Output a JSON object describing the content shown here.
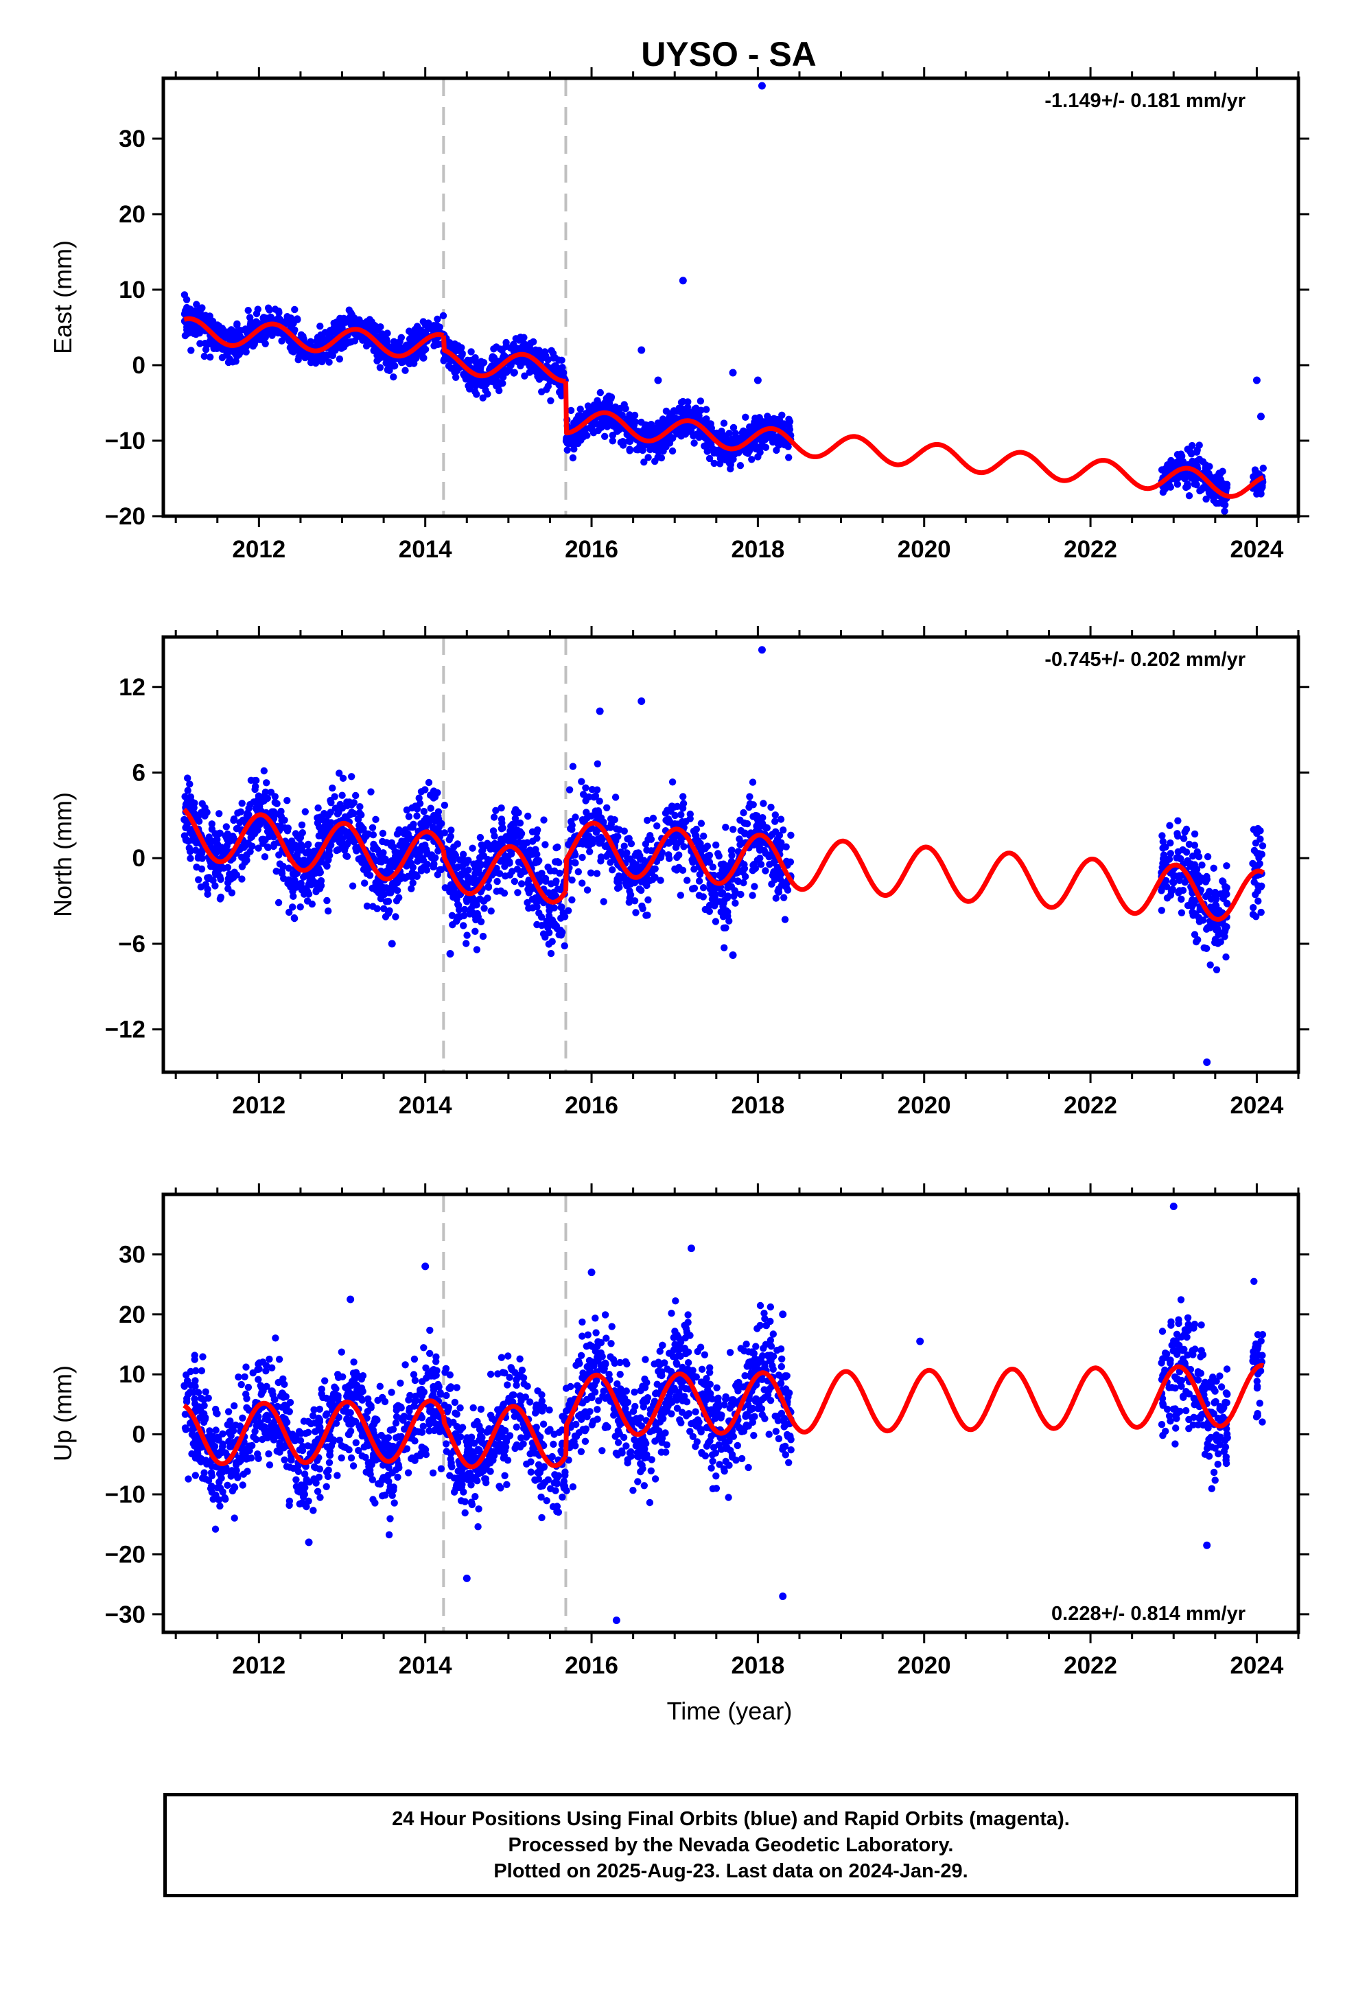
{
  "title": "UYSO - SA",
  "caption": [
    "24 Hour Positions Using Final Orbits (blue) and Rapid Orbits (magenta).",
    "Processed by the Nevada Geodetic Laboratory.",
    "Plotted on 2025-Aug-23. Last data on 2024-Jan-29."
  ],
  "colors": {
    "data": "#0000ff",
    "model": "#ff0000",
    "breaks": "#c0c0c0",
    "frame": "#000000"
  },
  "chart_data": [
    {
      "type": "scatter",
      "panel": "east",
      "ylabel": "East (mm)",
      "xlabel": "",
      "xlim": [
        2010.85,
        2024.5
      ],
      "ylim": [
        -20,
        38
      ],
      "xticks": [
        "2012",
        "2014",
        "2016",
        "2018",
        "2020",
        "2022",
        "2024"
      ],
      "yticks": [
        "−20",
        "−10",
        "0",
        "10",
        "20",
        "30"
      ],
      "yticks_values": [
        -20,
        -10,
        0,
        10,
        20,
        30
      ],
      "rate_label": "-1.149+/- 0.181 mm/yr",
      "rate_position": "top-right",
      "breaks": [
        2014.22,
        2015.69
      ],
      "data_segments": [
        [
          2011.1,
          2018.4
        ],
        [
          2022.85,
          2023.65
        ],
        [
          2023.95,
          2024.08
        ]
      ],
      "model": {
        "segments": [
          [
            2011.1,
            2014.22,
            4.6,
            -0.7
          ],
          [
            2014.22,
            2015.69,
            0.5,
            -0.7
          ],
          [
            2015.69,
            2024.08,
            -7.4,
            -1.05
          ]
        ],
        "annual_amp": 1.6,
        "phase": 0.5
      },
      "scatter_sd": 1.2,
      "outliers": [
        [
          2018.05,
          37.0
        ],
        [
          2017.1,
          11.2
        ],
        [
          2018.0,
          -2.0
        ],
        [
          2016.6,
          2.0
        ],
        [
          2017.7,
          -1.0
        ],
        [
          2016.8,
          -2.0
        ],
        [
          2024.0,
          -2.0
        ],
        [
          2024.05,
          -6.8
        ]
      ]
    },
    {
      "type": "scatter",
      "panel": "north",
      "ylabel": "North (mm)",
      "xlabel": "",
      "xlim": [
        2010.85,
        2024.5
      ],
      "ylim": [
        -15,
        15.5
      ],
      "xticks": [
        "2012",
        "2014",
        "2016",
        "2018",
        "2020",
        "2022",
        "2024"
      ],
      "yticks": [
        "−12",
        "−6",
        "0",
        "6",
        "12"
      ],
      "yticks_values": [
        -12,
        -6,
        0,
        6,
        12
      ],
      "rate_label": "-0.745+/- 0.202 mm/yr",
      "rate_position": "top-right",
      "breaks": [
        2014.22,
        2015.69
      ],
      "data_segments": [
        [
          2011.1,
          2018.4
        ],
        [
          2022.85,
          2023.65
        ],
        [
          2023.95,
          2024.08
        ]
      ],
      "model": {
        "segments": [
          [
            2011.1,
            2014.22,
            1.8,
            -0.6
          ],
          [
            2014.22,
            2015.69,
            -0.5,
            -0.6
          ],
          [
            2015.69,
            2024.08,
            0.8,
            -0.42
          ]
        ],
        "annual_amp": 1.8,
        "phase": 1.4
      },
      "scatter_sd": 1.5,
      "outliers": [
        [
          2018.05,
          14.6
        ],
        [
          2016.1,
          10.3
        ],
        [
          2016.6,
          11.0
        ],
        [
          2023.4,
          -14.3
        ],
        [
          2013.6,
          -6.0
        ],
        [
          2014.3,
          -6.7
        ],
        [
          2017.7,
          -6.8
        ]
      ]
    },
    {
      "type": "scatter",
      "panel": "up",
      "ylabel": "Up (mm)",
      "xlabel": "Time (year)",
      "xlim": [
        2010.85,
        2024.5
      ],
      "ylim": [
        -33,
        40
      ],
      "xticks": [
        "2012",
        "2014",
        "2016",
        "2018",
        "2020",
        "2022",
        "2024"
      ],
      "yticks": [
        "−30",
        "−20",
        "−10",
        "0",
        "10",
        "20",
        "30"
      ],
      "yticks_values": [
        -30,
        -20,
        -10,
        0,
        10,
        20,
        30
      ],
      "rate_label": "0.228+/- 0.814 mm/yr",
      "rate_position": "bottom-right",
      "breaks": [
        2014.22,
        2015.69
      ],
      "data_segments": [
        [
          2011.1,
          2018.4
        ],
        [
          2022.85,
          2023.65
        ],
        [
          2023.95,
          2024.08
        ]
      ],
      "model": {
        "segments": [
          [
            2011.1,
            2014.22,
            0.0,
            0.2
          ],
          [
            2014.22,
            2015.69,
            -0.5,
            0.2
          ],
          [
            2015.69,
            2024.08,
            4.8,
            0.2
          ]
        ],
        "annual_amp": 5.0,
        "phase": 1.2
      },
      "scatter_sd": 4.5,
      "outliers": [
        [
          2014.0,
          28.0
        ],
        [
          2016.0,
          27.0
        ],
        [
          2017.2,
          31.0
        ],
        [
          2018.3,
          20.0
        ],
        [
          2019.95,
          15.5
        ],
        [
          2023.4,
          -18.5
        ],
        [
          2016.3,
          -31.0
        ],
        [
          2018.3,
          -27.0
        ],
        [
          2014.5,
          -24.0
        ],
        [
          2012.6,
          -18.0
        ],
        [
          2013.1,
          22.5
        ],
        [
          2023.0,
          38.0
        ]
      ]
    }
  ]
}
